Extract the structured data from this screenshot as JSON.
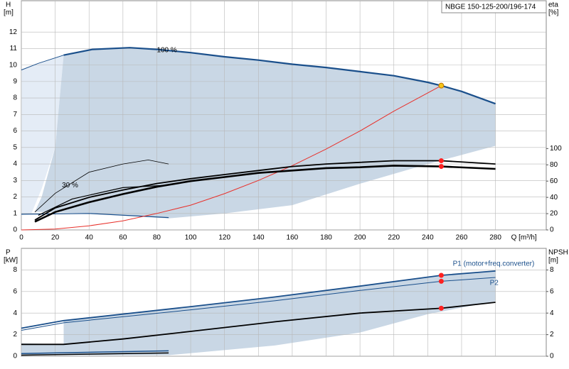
{
  "chart_data": [
    {
      "type": "line",
      "title": "NBGE 150-125-200/196-174",
      "y_label": "H",
      "y_unit": "[m]",
      "y2_label": "eta",
      "y2_unit": "[%]",
      "x_label": "Q [m³/h]",
      "xlim": [
        0,
        310
      ],
      "xticks": [
        0,
        20,
        40,
        60,
        80,
        100,
        120,
        140,
        160,
        180,
        200,
        220,
        240,
        260,
        280
      ],
      "ylim": [
        0,
        13.9
      ],
      "yticks": [
        0,
        1,
        2,
        3,
        4,
        5,
        6,
        7,
        8,
        9,
        10,
        11,
        12
      ],
      "y2lim": [
        0,
        281.7
      ],
      "y2ticks": [
        0,
        20,
        40,
        60,
        80,
        100
      ],
      "grid": true,
      "xtick_labels": true,
      "series": [
        {
          "style": "area",
          "color": "#e4ecf6",
          "x": [
            0,
            25,
            20,
            12,
            6,
            0
          ],
          "values": [
            9.7,
            10.6,
            5,
            2.5,
            1,
            0.9
          ]
        },
        {
          "style": "area",
          "color": "#c9d7e5",
          "x": [
            25,
            42,
            64,
            80,
            100,
            120,
            140,
            160,
            180,
            200,
            220,
            248,
            260,
            280,
            280,
            240,
            200,
            160,
            120,
            87,
            40,
            8,
            12,
            20
          ],
          "values": [
            10.6,
            10.95,
            11.05,
            10.95,
            10.75,
            10.5,
            10.3,
            10.05,
            9.85,
            9.6,
            9.35,
            8.75,
            8.4,
            7.65,
            5.1,
            4.0,
            2.8,
            1.5,
            1.0,
            0.7,
            1.0,
            1.1,
            2,
            5
          ]
        },
        {
          "style": "line",
          "color": "#1a4f8b",
          "width": 1,
          "x": [
            0,
            10,
            25
          ],
          "values": [
            9.7,
            10.1,
            10.6
          ]
        },
        {
          "style": "line",
          "color": "#1a4f8b",
          "width": 2.2,
          "x": [
            25,
            42,
            64,
            80,
            100,
            120,
            140,
            160,
            180,
            200,
            220,
            240,
            248,
            260,
            280
          ],
          "values": [
            10.6,
            10.95,
            11.05,
            10.95,
            10.75,
            10.5,
            10.3,
            10.05,
            9.85,
            9.6,
            9.35,
            8.95,
            8.75,
            8.4,
            7.65
          ]
        },
        {
          "style": "line",
          "color": "#1a4f8b",
          "width": 1.2,
          "x": [
            0,
            40,
            87
          ],
          "values": [
            0.95,
            1.0,
            0.75
          ]
        },
        {
          "style": "line",
          "color": "#e8312b",
          "width": 1,
          "x": [
            0,
            20,
            40,
            60,
            80,
            100,
            120,
            140,
            160,
            180,
            200,
            220,
            248
          ],
          "values": [
            0,
            0.05,
            0.25,
            0.55,
            1.0,
            1.5,
            2.2,
            3.0,
            3.9,
            4.9,
            6.0,
            7.2,
            8.75
          ]
        },
        {
          "style": "line",
          "color": "#000000",
          "width": 1.8,
          "axis": "y2",
          "x": [
            8,
            20,
            40,
            60,
            80,
            100,
            120,
            140,
            160,
            180,
            200,
            220,
            248,
            280
          ],
          "values": [
            12,
            27,
            40,
            49,
            57,
            63,
            68,
            73,
            78,
            81,
            83,
            85,
            85,
            81
          ]
        },
        {
          "style": "line",
          "color": "#000000",
          "width": 2.6,
          "axis": "y2",
          "x": [
            8,
            20,
            40,
            60,
            80,
            100,
            120,
            140,
            160,
            180,
            200,
            220,
            248,
            280
          ],
          "values": [
            10,
            22,
            34,
            44,
            53,
            60,
            65,
            70,
            73,
            76,
            77,
            79,
            78,
            75
          ]
        },
        {
          "style": "line",
          "color": "#000000",
          "width": 0.8,
          "axis": "y2",
          "x": [
            8,
            20,
            40,
            60,
            75,
            87
          ],
          "values": [
            22,
            45,
            71,
            81,
            86,
            81
          ]
        },
        {
          "style": "line",
          "color": "#000000",
          "width": 1.2,
          "axis": "y2",
          "x": [
            10,
            30,
            60,
            87
          ],
          "values": [
            18,
            38,
            52,
            55
          ]
        }
      ],
      "points": [
        {
          "x": 248,
          "y": 8.75,
          "color": "#f5c518"
        },
        {
          "x": 248,
          "y": 85,
          "color": "#ff2020",
          "axis": "y2"
        },
        {
          "x": 248,
          "y": 78,
          "color": "#ff2020",
          "axis": "y2"
        }
      ],
      "annotations": [
        {
          "text": "100 %",
          "x": 80,
          "y": 10.9
        },
        {
          "text": "30 %",
          "x": 24,
          "y": 2.7
        }
      ]
    },
    {
      "type": "line",
      "y_label": "P",
      "y_unit": "[kW]",
      "y2_label": "NPSH",
      "y2_unit": "[m]",
      "xlim": [
        0,
        310
      ],
      "xticks": [
        0,
        20,
        40,
        60,
        80,
        100,
        120,
        140,
        160,
        180,
        200,
        220,
        240,
        260,
        280
      ],
      "ylim": [
        0,
        10
      ],
      "yticks": [
        0,
        2,
        4,
        6,
        8
      ],
      "y2lim": [
        0,
        10
      ],
      "y2ticks": [
        0,
        2,
        4,
        6,
        8
      ],
      "grid": true,
      "xtick_labels": false,
      "series": [
        {
          "style": "area",
          "color": "#c9d7e5",
          "x": [
            25,
            100,
            150,
            200,
            248,
            280,
            280,
            240,
            200,
            150,
            87,
            0,
            0,
            25
          ],
          "values": [
            3.3,
            4.6,
            5.5,
            6.5,
            7.5,
            7.9,
            5.1,
            3.9,
            2.2,
            1.0,
            0.1,
            0.1,
            1.2,
            1.1
          ]
        },
        {
          "style": "line",
          "name": "P1 (motor+freq.converter)",
          "color": "#1a4f8b",
          "width": 1.8,
          "x": [
            0,
            25,
            100,
            150,
            200,
            248,
            280
          ],
          "values": [
            2.6,
            3.3,
            4.6,
            5.5,
            6.5,
            7.5,
            7.9
          ]
        },
        {
          "style": "line",
          "name": "P2",
          "color": "#1a4f8b",
          "width": 1,
          "x": [
            0,
            25,
            100,
            150,
            200,
            248,
            280
          ],
          "values": [
            2.4,
            3.1,
            4.3,
            5.15,
            6.1,
            6.95,
            7.3
          ]
        },
        {
          "style": "line",
          "color": "#000000",
          "width": 1.8,
          "axis": "y2",
          "x": [
            0,
            25,
            60,
            100,
            150,
            200,
            248,
            280
          ],
          "values": [
            1.1,
            1.1,
            1.6,
            2.3,
            3.2,
            4.0,
            4.45,
            5.0
          ]
        },
        {
          "style": "line",
          "color": "#1a4f8b",
          "width": 1.5,
          "x": [
            0,
            87
          ],
          "values": [
            0.25,
            0.5
          ]
        },
        {
          "style": "line",
          "color": "#000000",
          "width": 1.5,
          "x": [
            0,
            87
          ],
          "values": [
            0.1,
            0.3
          ]
        }
      ],
      "points": [
        {
          "x": 248,
          "y": 7.5,
          "color": "#ff2020"
        },
        {
          "x": 248,
          "y": 6.95,
          "color": "#ff2020"
        },
        {
          "x": 248,
          "y": 4.45,
          "color": "#ff2020",
          "axis": "y2"
        }
      ],
      "annotations": []
    }
  ]
}
